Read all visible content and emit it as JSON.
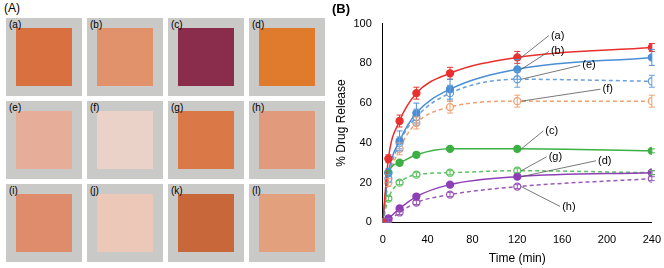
{
  "panel_a": {
    "label": "(A)",
    "tiles": [
      {
        "label": "(a)",
        "color": "#d8703f"
      },
      {
        "label": "(b)",
        "color": "#e2926a"
      },
      {
        "label": "(c)",
        "color": "#8a2d4c"
      },
      {
        "label": "(d)",
        "color": "#e07a2c"
      },
      {
        "label": "(e)",
        "color": "#e6ad98"
      },
      {
        "label": "(f)",
        "color": "#ead2c8"
      },
      {
        "label": "(g)",
        "color": "#da7848"
      },
      {
        "label": "(h)",
        "color": "#e29a7c"
      },
      {
        "label": "(i)",
        "color": "#de8c6c"
      },
      {
        "label": "(j)",
        "color": "#ebc8b8"
      },
      {
        "label": "(k)",
        "color": "#c8673a"
      },
      {
        "label": "(l)",
        "color": "#e2a07c"
      }
    ]
  },
  "chart_data": {
    "type": "line",
    "title": "(B)",
    "x_label": "Time (min)",
    "y_label": "% Drug Release",
    "x": [
      0,
      5,
      15,
      30,
      60,
      120,
      240
    ],
    "xlim": [
      0,
      240
    ],
    "xticks": [
      0,
      40,
      80,
      120,
      160,
      200,
      240
    ],
    "ylim": [
      0,
      100
    ],
    "yticks": [
      0,
      20,
      40,
      60,
      80,
      100
    ],
    "grid": false,
    "series": [
      {
        "name": "(a)",
        "color": "#e8312f",
        "marker": "circle",
        "line_style": "solid",
        "values": [
          0,
          32,
          51,
          65,
          75,
          83,
          88
        ],
        "errors": [
          0,
          2,
          3,
          3,
          3,
          3,
          2
        ]
      },
      {
        "name": "(b)",
        "color": "#4a8fd6",
        "marker": "circle",
        "line_style": "solid",
        "values": [
          0,
          25,
          41,
          55,
          67,
          77,
          83
        ],
        "errors": [
          0,
          2,
          5,
          5,
          5,
          5,
          4
        ]
      },
      {
        "name": "(c)",
        "color": "#3cb043",
        "marker": "circle",
        "line_style": "solid",
        "values": [
          0,
          25,
          30,
          34,
          37,
          37,
          36
        ],
        "errors": [
          0,
          1,
          1,
          1,
          1,
          1,
          1
        ]
      },
      {
        "name": "(d)",
        "color": "#8e3fb5",
        "marker": "circle",
        "line_style": "solid",
        "values": [
          0,
          2,
          7,
          13,
          19,
          23,
          25
        ],
        "errors": [
          0,
          1,
          1,
          1,
          1,
          1,
          1
        ]
      },
      {
        "name": "(e)",
        "color": "#6aa0d8",
        "marker": "open_circle",
        "line_style": "dashed",
        "values": [
          0,
          22,
          40,
          53,
          65,
          72,
          71
        ],
        "errors": [
          0,
          2,
          3,
          4,
          4,
          4,
          3
        ]
      },
      {
        "name": "(f)",
        "color": "#f0a070",
        "marker": "open_circle",
        "line_style": "dashed",
        "values": [
          0,
          20,
          37,
          50,
          58,
          61,
          61
        ],
        "errors": [
          0,
          2,
          3,
          3,
          3,
          3,
          3
        ]
      },
      {
        "name": "(g)",
        "color": "#5cc060",
        "marker": "open_circle",
        "line_style": "dashed",
        "values": [
          0,
          12,
          20,
          24,
          25,
          26,
          25
        ],
        "errors": [
          0,
          1,
          1,
          1,
          1,
          1,
          1
        ]
      },
      {
        "name": "(h)",
        "color": "#9b59b6",
        "marker": "open_circle",
        "line_style": "dashed",
        "values": [
          0,
          1,
          5,
          10,
          14,
          18,
          22
        ],
        "errors": [
          0,
          1,
          1,
          1,
          1,
          1,
          1
        ]
      }
    ]
  }
}
